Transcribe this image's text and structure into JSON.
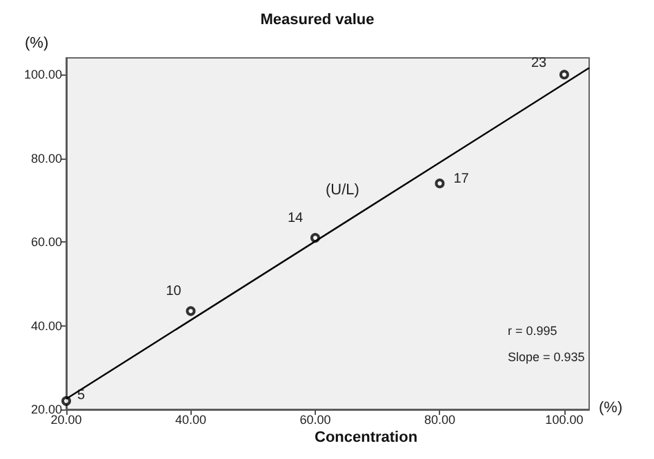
{
  "chart_data": {
    "type": "scatter",
    "title": "Measured value",
    "xlabel": "Concentration",
    "ylabel": "(%)",
    "xlim": [
      20,
      104
    ],
    "ylim": [
      20,
      104
    ],
    "xticks": [
      {
        "value": 20,
        "label": "20.00"
      },
      {
        "value": 40,
        "label": "40.00"
      },
      {
        "value": 60,
        "label": "60.00"
      },
      {
        "value": 80,
        "label": "80.00"
      },
      {
        "value": 100,
        "label": "100.00"
      }
    ],
    "yticks": [
      {
        "value": 20,
        "label": "20.00"
      },
      {
        "value": 40,
        "label": "40.00"
      },
      {
        "value": 60,
        "label": "60.00"
      },
      {
        "value": 80,
        "label": "80.00"
      },
      {
        "value": 100,
        "label": "100.00"
      }
    ],
    "grid": false,
    "series": [
      {
        "marker": "circle",
        "color": "#000000",
        "x": [
          20,
          40,
          60,
          80,
          100
        ],
        "values": [
          22,
          43.5,
          61,
          74,
          100
        ]
      },
      {
        "type": "line",
        "color": "#000000",
        "x": [
          20,
          104
        ],
        "values": [
          22.5,
          101.6
        ],
        "line_style": "solid",
        "marker": "none"
      }
    ],
    "annotations": [
      {
        "text": "5",
        "x": 20,
        "y": 22
      },
      {
        "text": "10",
        "x": 40,
        "y": 43.5
      },
      {
        "text": "14",
        "x": 60,
        "y": 61
      },
      {
        "text": "17",
        "x": 80,
        "y": 74
      },
      {
        "text": "23",
        "x": 100,
        "y": 100
      },
      "(U/L)",
      "r = 0.995",
      "Slope = 0.935",
      "(%)"
    ]
  }
}
